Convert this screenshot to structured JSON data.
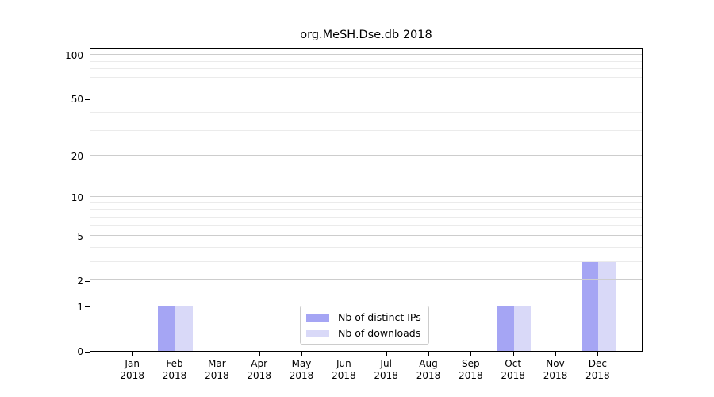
{
  "chart_data": {
    "type": "bar",
    "title": "org.MeSH.Dse.db 2018",
    "categories": [
      "Jan",
      "Feb",
      "Mar",
      "Apr",
      "May",
      "Jun",
      "Jul",
      "Aug",
      "Sep",
      "Oct",
      "Nov",
      "Dec"
    ],
    "year_label": "2018",
    "series": [
      {
        "name": "Nb of distinct IPs",
        "color": "#a5a5f4",
        "values": [
          0,
          1,
          0,
          0,
          0,
          0,
          0,
          0,
          0,
          1,
          0,
          3
        ]
      },
      {
        "name": "Nb of downloads",
        "color": "#d9d9f8",
        "values": [
          0,
          1,
          0,
          0,
          0,
          0,
          0,
          0,
          0,
          1,
          0,
          3
        ]
      }
    ],
    "xlabel": "",
    "ylabel": "",
    "y_scale": "log1p",
    "ylim": [
      0,
      112
    ],
    "y_ticks": [
      0,
      1,
      2,
      5,
      10,
      20,
      50,
      100
    ],
    "y_minor_gridlines": [
      3,
      4,
      6,
      7,
      8,
      9,
      30,
      40,
      60,
      70,
      80,
      90
    ],
    "grid": "horizontal",
    "legend": {
      "position": "lower center",
      "entries": [
        "Nb of distinct IPs",
        "Nb of downloads"
      ]
    }
  },
  "colors": {
    "major_grid": "#cdcdcd",
    "minor_grid": "#ebebeb",
    "spine": "#000000",
    "legend_border": "#cccccc",
    "text": "#000000"
  }
}
